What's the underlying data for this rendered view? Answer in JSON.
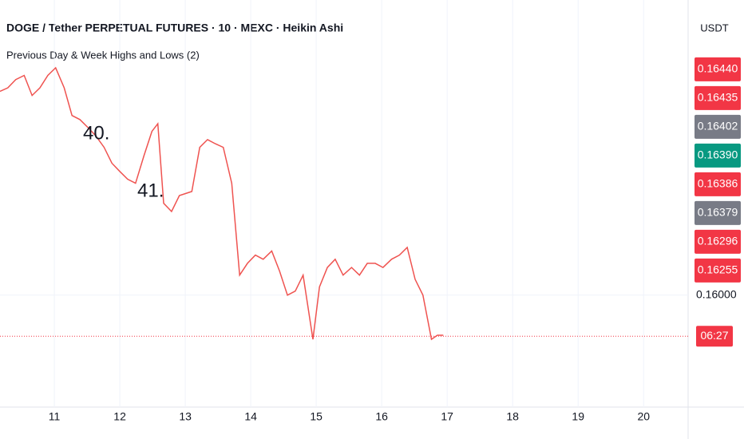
{
  "chart_data": {
    "type": "line",
    "title": "DOGE / Tether PERPETUAL FUTURES · 10 · MEXC · Heikin Ashi",
    "subtitle": "Previous Day & Week Highs and Lows (2)",
    "y_axis_label": "USDT",
    "annotations": [
      "40.",
      "41."
    ],
    "x": [
      10.17,
      10.29,
      10.41,
      10.54,
      10.66,
      10.78,
      10.9,
      11.02,
      11.15,
      11.27,
      11.39,
      11.51,
      11.63,
      11.76,
      11.88,
      12.0,
      12.12,
      12.24,
      12.37,
      12.49,
      12.58,
      12.67,
      12.79,
      12.91,
      13.1,
      13.22,
      13.34,
      13.46,
      13.58,
      13.71,
      13.83,
      13.95,
      14.07,
      14.19,
      14.32,
      14.44,
      14.56,
      14.68,
      14.8,
      14.95,
      15.05,
      15.17,
      15.29,
      15.41,
      15.54,
      15.66,
      15.78,
      15.9,
      16.02,
      16.15,
      16.27,
      16.39,
      16.51,
      16.63,
      16.76,
      16.85,
      16.94
    ],
    "series": [
      {
        "name": "DOGE",
        "color": "#ef5350",
        "values": [
          0.16397,
          0.16404,
          0.1642,
          0.16428,
          0.16389,
          0.16404,
          0.16428,
          0.16443,
          0.16404,
          0.1635,
          0.16342,
          0.16327,
          0.16311,
          0.16288,
          0.16257,
          0.16241,
          0.16226,
          0.16218,
          0.16272,
          0.16319,
          0.16334,
          0.16179,
          0.16163,
          0.16194,
          0.16202,
          0.16288,
          0.16303,
          0.16295,
          0.16288,
          0.16218,
          0.16039,
          0.16062,
          0.16078,
          0.1607,
          0.16086,
          0.16047,
          0.16,
          0.16008,
          0.16039,
          0.15914,
          0.16016,
          0.16054,
          0.1607,
          0.16039,
          0.16054,
          0.16039,
          0.16062,
          0.16062,
          0.16054,
          0.1607,
          0.16078,
          0.16093,
          0.16031,
          0.16,
          0.15914,
          0.15922,
          0.15922
        ]
      }
    ],
    "xlim": [
      10.17,
      20.68
    ],
    "xticks": [
      11,
      12,
      13,
      14,
      15,
      16,
      17,
      18,
      19,
      20
    ],
    "ylim": [
      0.15782,
      0.16575
    ],
    "yticks": [
      {
        "value": 0.16,
        "label": "0.16000"
      }
    ],
    "price_tags": [
      {
        "value": 0.1644,
        "label": "0.16440",
        "color": "#f23645"
      },
      {
        "value": 0.16435,
        "label": "0.16435",
        "color": "#f23645"
      },
      {
        "value": 0.16402,
        "label": "0.16402",
        "color": "#787b86"
      },
      {
        "value": 0.1639,
        "label": "0.16390",
        "color": "#089981"
      },
      {
        "value": 0.16386,
        "label": "0.16386",
        "color": "#f23645"
      },
      {
        "value": 0.16379,
        "label": "0.16379",
        "color": "#787b86"
      },
      {
        "value": 0.16296,
        "label": "0.16296",
        "color": "#f23645"
      },
      {
        "value": 0.16255,
        "label": "0.16255",
        "color": "#f23645"
      }
    ],
    "last_price": 0.1592,
    "countdown": "06:27",
    "grid": true
  }
}
